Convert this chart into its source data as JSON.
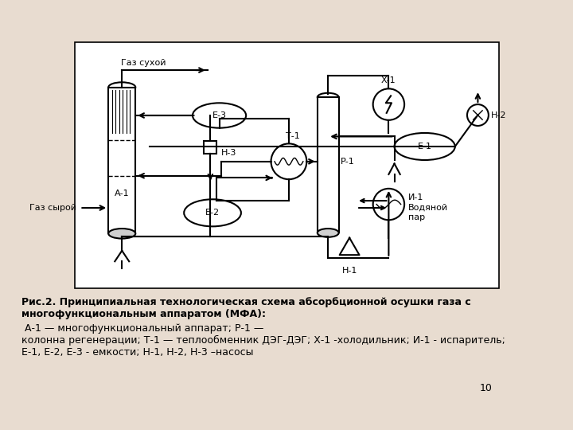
{
  "bg_color": "#e8dcd0",
  "diagram_bg": "#ffffff",
  "diagram_border": "#000000",
  "line_color": "#000000",
  "text_color": "#000000",
  "caption_bold_part": "Рис.2. Принципиальная технологическая схема абсорбционной осушки газа с\nмногофункциональным аппаратом (МФА):",
  "caption_normal_part": " А-1 — многофункциональный аппарат; Р-1 —\nколонна регенерации; Т-1 — теплообменник ДЭГ-ДЭГ; Х-1 -холодильник; И-1 - испаритель;\nЕ-1, Е-2, Е-3 - емкости; Н-1, Н-2, Н-3 –насосы",
  "page_number": "10",
  "lw": 1.5
}
